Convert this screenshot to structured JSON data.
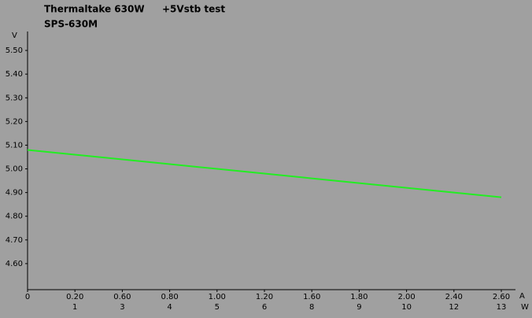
{
  "chart_data": {
    "type": "line",
    "title": "Thermaltake 630W",
    "subtitle": "+5Vstb test",
    "model": "SPS-630M",
    "y_label": "V",
    "x_label": "A",
    "x2_label": "W",
    "categories": [
      "0",
      "0.20",
      "0.60",
      "0.80",
      "1.00",
      "1.20",
      "1.60",
      "1.80",
      "2.00",
      "2.40",
      "2.60"
    ],
    "categories_w": [
      null,
      "1",
      "3",
      "4",
      "5",
      "6",
      "8",
      "9",
      "10",
      "12",
      "13"
    ],
    "series": [
      {
        "name": "+5Vstb",
        "color": "#22ee22",
        "values": [
          5.08,
          5.06,
          5.04,
          5.02,
          5.0,
          4.98,
          4.96,
          4.94,
          4.92,
          4.9,
          4.88
        ]
      }
    ],
    "ylim": [
      4.49,
      5.58
    ],
    "yticks": [
      {
        "value": 4.6,
        "label": "4.60"
      },
      {
        "value": 4.7,
        "label": "4.70"
      },
      {
        "value": 4.8,
        "label": "4.80"
      },
      {
        "value": 4.9,
        "label": "4.90"
      },
      {
        "value": 5.0,
        "label": "5.00"
      },
      {
        "value": 5.1,
        "label": "5.10"
      },
      {
        "value": 5.2,
        "label": "5.20"
      },
      {
        "value": 5.3,
        "label": "5.30"
      },
      {
        "value": 5.4,
        "label": "5.40"
      },
      {
        "value": 5.5,
        "label": "5.50"
      }
    ],
    "grid": false
  }
}
